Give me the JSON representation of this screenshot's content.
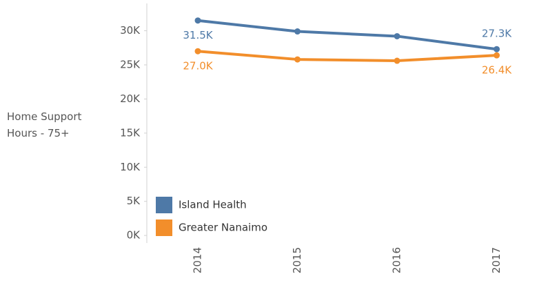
{
  "chart_data": {
    "type": "line",
    "y_label": "Home Support Hours - 75+",
    "categories": [
      "2014",
      "2015",
      "2016",
      "2017"
    ],
    "series": [
      {
        "name": "Island Health",
        "color": "#4e79a7",
        "values": [
          31500,
          29900,
          29200,
          27300
        ],
        "value_labels": [
          "31.5K",
          null,
          null,
          "27.3K"
        ]
      },
      {
        "name": "Greater Nanaimo",
        "color": "#f28e2b",
        "values": [
          27000,
          25800,
          25600,
          26400
        ],
        "value_labels": [
          "27.0K",
          null,
          null,
          "26.4K"
        ]
      }
    ],
    "ylim": [
      -1100,
      34000
    ],
    "yticks": [
      {
        "value": 0,
        "label": "0K"
      },
      {
        "value": 5000,
        "label": "5K"
      },
      {
        "value": 10000,
        "label": "10K"
      },
      {
        "value": 15000,
        "label": "15K"
      },
      {
        "value": 20000,
        "label": "20K"
      },
      {
        "value": 25000,
        "label": "25K"
      },
      {
        "value": 30000,
        "label": "30K"
      }
    ],
    "grid": false,
    "legend": "lower left"
  }
}
